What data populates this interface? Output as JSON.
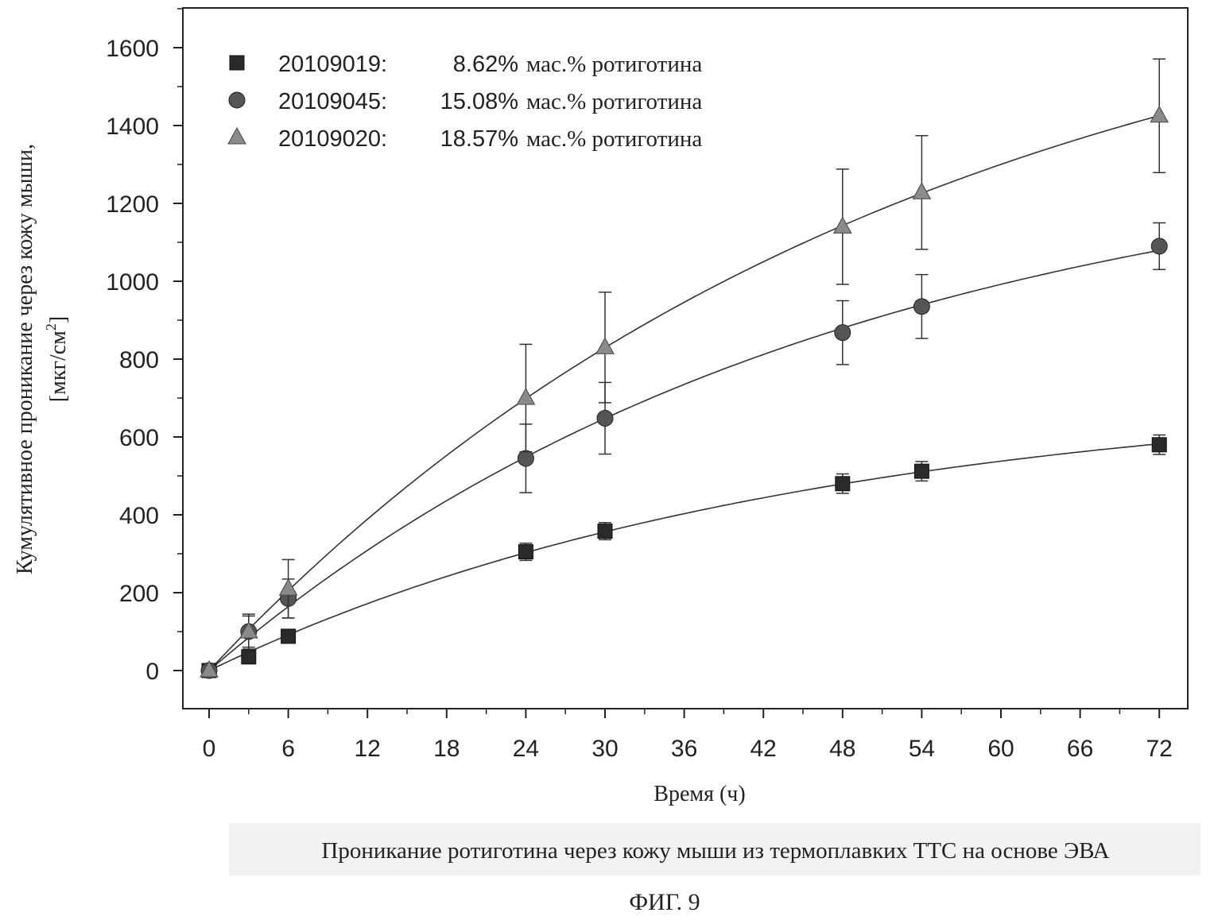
{
  "chart_data": {
    "type": "scatter",
    "xlabel": "Время (ч)",
    "ylabel_line1": "Кумулятивное проникание через кожу мыши,",
    "ylabel_line2": "[мкг/см",
    "ylabel_sup": "2",
    "ylabel_close": "]",
    "xlim": [
      -3,
      74
    ],
    "ylim": [
      -100,
      1700
    ],
    "x_ticks": [
      0,
      6,
      12,
      18,
      24,
      30,
      36,
      42,
      48,
      54,
      60,
      66,
      72
    ],
    "y_ticks": [
      0,
      200,
      400,
      600,
      800,
      1000,
      1200,
      1400,
      1600
    ],
    "x_tick_labels": [
      "0",
      "6",
      "12",
      "18",
      "24",
      "30",
      "36",
      "42",
      "48",
      "54",
      "60",
      "66",
      "72"
    ],
    "y_tick_labels": [
      "0",
      "200",
      "400",
      "600",
      "800",
      "1000",
      "1200",
      "1400",
      "1600"
    ],
    "legend_position": "top-left",
    "series": [
      {
        "name": "20109019:",
        "legend_pct": "8.62%",
        "legend_suffix": "мас.% ротиготина",
        "marker": "square",
        "color": "#2a2a2a",
        "x": [
          0,
          3,
          6,
          24,
          30,
          48,
          54,
          72
        ],
        "y": [
          0,
          35,
          88,
          305,
          358,
          480,
          512,
          580
        ],
        "err": [
          0,
          12,
          15,
          22,
          22,
          25,
          25,
          25
        ]
      },
      {
        "name": "20109045:",
        "legend_pct": "15.08%",
        "legend_suffix": "мас.% ротиготина",
        "marker": "circle",
        "color": "#555555",
        "x": [
          0,
          3,
          6,
          24,
          30,
          48,
          54,
          72
        ],
        "y": [
          0,
          100,
          185,
          545,
          648,
          868,
          935,
          1090
        ],
        "err": [
          0,
          40,
          50,
          88,
          92,
          82,
          82,
          60
        ]
      },
      {
        "name": "20109020:",
        "legend_pct": "18.57%",
        "legend_suffix": "мас.% ротиготина",
        "marker": "triangle",
        "color": "#8a8a8a",
        "x": [
          0,
          3,
          6,
          24,
          30,
          48,
          54,
          72
        ],
        "y": [
          0,
          100,
          210,
          700,
          830,
          1140,
          1228,
          1425
        ],
        "err": [
          0,
          45,
          75,
          138,
          142,
          148,
          146,
          146
        ]
      }
    ]
  },
  "caption": "Проникание ротиготина через кожу мыши из термоплавких ТТС на основе ЭВА",
  "figure_label": "ФИГ. 9"
}
